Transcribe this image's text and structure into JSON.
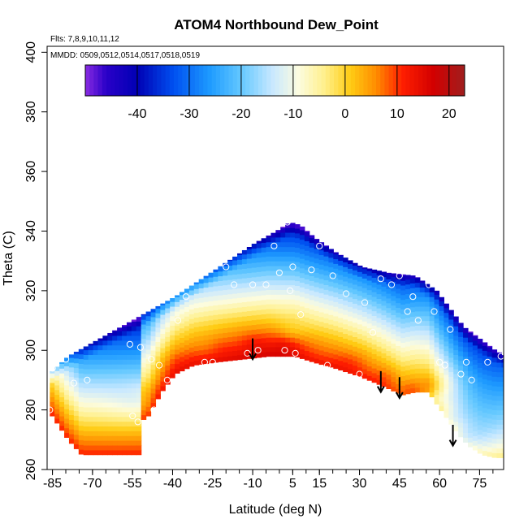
{
  "chart_data": {
    "type": "heatmap",
    "title": "ATOM4 Northbound Dew_Point",
    "subtitle_flights": "Flts: 7,8,9,10,11,12",
    "subtitle_dates": "MMDD: 0509,0512,0514,0517,0518,0519",
    "xlabel": "Latitude (deg N)",
    "ylabel": "Theta (C)",
    "xlim": [
      -87,
      84
    ],
    "ylim": [
      260,
      402
    ],
    "x_ticks": [
      -85,
      -70,
      -55,
      -40,
      -25,
      -10,
      5,
      15,
      30,
      45,
      60,
      75
    ],
    "x_tick_labels": [
      "-85",
      "-70",
      "-55",
      "-40",
      "-25",
      "-10",
      "5",
      "15",
      "30",
      "45",
      "60",
      "75"
    ],
    "y_ticks": [
      260,
      280,
      300,
      320,
      340,
      360,
      380,
      400
    ],
    "y_tick_labels": [
      "260",
      "280",
      "300",
      "320",
      "340",
      "360",
      "380",
      "400"
    ],
    "colorbar": {
      "range": [
        -50,
        23
      ],
      "ticks": [
        -40,
        -30,
        -20,
        -10,
        0,
        10,
        20
      ],
      "tick_labels": [
        "-40",
        "-30",
        "-20",
        "-10",
        "0",
        "10",
        "20"
      ],
      "stops": [
        {
          "v": -50,
          "c": "#8a2be2"
        },
        {
          "v": -46,
          "c": "#2a00c8"
        },
        {
          "v": -40,
          "c": "#0000b4"
        },
        {
          "v": -33,
          "c": "#0050f0"
        },
        {
          "v": -26,
          "c": "#1e9bff"
        },
        {
          "v": -20,
          "c": "#64c8ff"
        },
        {
          "v": -14,
          "c": "#c8e8ff"
        },
        {
          "v": -9,
          "c": "#fcfce0"
        },
        {
          "v": -4,
          "c": "#fff08c"
        },
        {
          "v": 1,
          "c": "#ffcc14"
        },
        {
          "v": 6,
          "c": "#ff8c00"
        },
        {
          "v": 11,
          "c": "#ff1e00"
        },
        {
          "v": 17,
          "c": "#d20000"
        },
        {
          "v": 23,
          "c": "#a01e1e"
        }
      ]
    },
    "field": {
      "top_boundary": [
        [
          -86,
          293
        ],
        [
          -80,
          298
        ],
        [
          -70,
          303
        ],
        [
          -60,
          308
        ],
        [
          -50,
          313
        ],
        [
          -40,
          318
        ],
        [
          -30,
          324
        ],
        [
          -20,
          330
        ],
        [
          -10,
          336
        ],
        [
          -2,
          340
        ],
        [
          3,
          343
        ],
        [
          7,
          342
        ],
        [
          12,
          338
        ],
        [
          20,
          333
        ],
        [
          30,
          328
        ],
        [
          40,
          326
        ],
        [
          50,
          325
        ],
        [
          58,
          320
        ],
        [
          63,
          314
        ],
        [
          68,
          308
        ],
        [
          74,
          304
        ],
        [
          80,
          300
        ],
        [
          84,
          298
        ]
      ],
      "bottom_boundary": [
        [
          -86,
          278
        ],
        [
          -80,
          270
        ],
        [
          -75,
          265
        ],
        [
          -70,
          265
        ],
        [
          -60,
          265
        ],
        [
          -53,
          265
        ],
        [
          -53,
          276
        ],
        [
          -50,
          278
        ],
        [
          -45,
          286
        ],
        [
          -40,
          292
        ],
        [
          -33,
          295
        ],
        [
          -25,
          296
        ],
        [
          -15,
          297
        ],
        [
          -5,
          298
        ],
        [
          5,
          298
        ],
        [
          12,
          296
        ],
        [
          20,
          294
        ],
        [
          30,
          291
        ],
        [
          38,
          288
        ],
        [
          45,
          285
        ],
        [
          50,
          286
        ],
        [
          55,
          286
        ],
        [
          58,
          282
        ],
        [
          62,
          277
        ],
        [
          66,
          272
        ],
        [
          70,
          268
        ],
        [
          75,
          265
        ],
        [
          80,
          264
        ],
        [
          84,
          264
        ]
      ],
      "core": [
        [
          -56,
          281,
          8
        ],
        [
          -50,
          287,
          12
        ],
        [
          -40,
          296,
          14
        ],
        [
          -30,
          300,
          12
        ],
        [
          -20,
          301,
          15
        ],
        [
          -10,
          302,
          18
        ],
        [
          0,
          301,
          18
        ],
        [
          5,
          306,
          10
        ],
        [
          15,
          298,
          12
        ],
        [
          25,
          296,
          14
        ],
        [
          38,
          291,
          12
        ],
        [
          48,
          287,
          10
        ],
        [
          55,
          289,
          8
        ],
        [
          58,
          282,
          -6
        ],
        [
          62,
          276,
          -10
        ],
        [
          68,
          270,
          -12
        ]
      ]
    },
    "observation_points": [
      [
        -85,
        294
      ],
      [
        -86,
        280
      ],
      [
        -77,
        289
      ],
      [
        -80,
        297
      ],
      [
        -72,
        290
      ],
      [
        -55,
        278
      ],
      [
        -53,
        276
      ],
      [
        -52,
        301
      ],
      [
        -56,
        302
      ],
      [
        -48,
        297
      ],
      [
        -45,
        295
      ],
      [
        -47,
        280
      ],
      [
        -42,
        290
      ],
      [
        -38,
        310
      ],
      [
        -35,
        318
      ],
      [
        -30,
        327
      ],
      [
        -28,
        296
      ],
      [
        -25,
        296
      ],
      [
        -20,
        328
      ],
      [
        -17,
        322
      ],
      [
        -12,
        299
      ],
      [
        -10,
        322
      ],
      [
        -8,
        300
      ],
      [
        -5,
        322
      ],
      [
        -2,
        335
      ],
      [
        0,
        326
      ],
      [
        2,
        300
      ],
      [
        3,
        343
      ],
      [
        4,
        320
      ],
      [
        5,
        328
      ],
      [
        6,
        299
      ],
      [
        8,
        312
      ],
      [
        12,
        327
      ],
      [
        15,
        335
      ],
      [
        18,
        295
      ],
      [
        20,
        325
      ],
      [
        25,
        319
      ],
      [
        30,
        292
      ],
      [
        32,
        316
      ],
      [
        35,
        306
      ],
      [
        38,
        324
      ],
      [
        42,
        322
      ],
      [
        45,
        325
      ],
      [
        48,
        313
      ],
      [
        50,
        318
      ],
      [
        52,
        310
      ],
      [
        55,
        328
      ],
      [
        56,
        322
      ],
      [
        58,
        313
      ],
      [
        60,
        296
      ],
      [
        62,
        295
      ],
      [
        64,
        307
      ],
      [
        68,
        292
      ],
      [
        70,
        296
      ],
      [
        72,
        290
      ],
      [
        78,
        296
      ],
      [
        80,
        304
      ],
      [
        83,
        298
      ],
      [
        70,
        313
      ],
      [
        72,
        320
      ]
    ],
    "arrows": [
      {
        "lat": -10,
        "theta_start": 304,
        "theta_end": 297
      },
      {
        "lat": 38,
        "theta_start": 293,
        "theta_end": 286
      },
      {
        "lat": 45,
        "theta_start": 291,
        "theta_end": 284
      },
      {
        "lat": 65,
        "theta_start": 275,
        "theta_end": 268
      }
    ]
  }
}
